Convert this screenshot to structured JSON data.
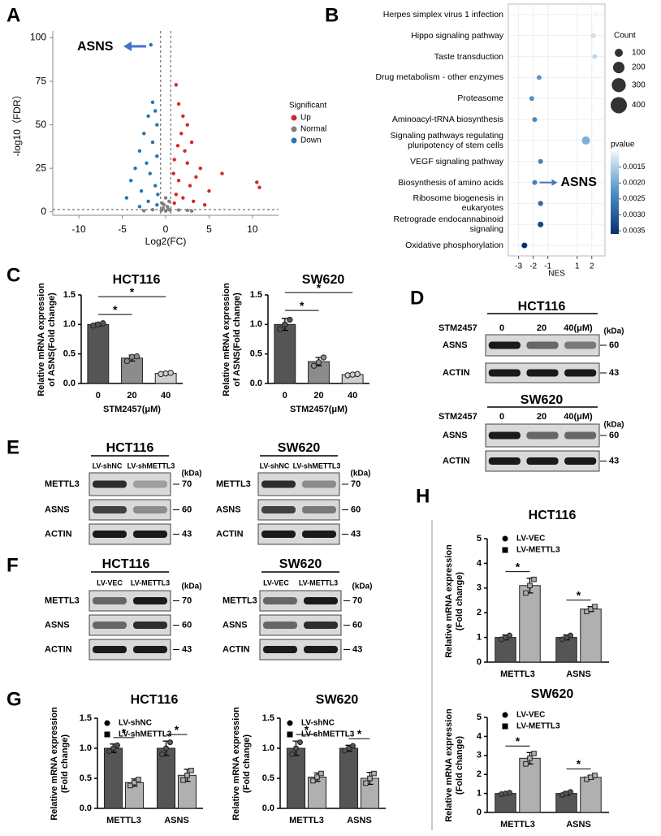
{
  "panel_labels": [
    "A",
    "B",
    "C",
    "D",
    "E",
    "F",
    "G",
    "H"
  ],
  "chart_data": [
    {
      "type": "volcano",
      "xlabel": "Log2(FC)",
      "ylabel": "-log10（FDR）",
      "xlim": [
        -13,
        13
      ],
      "ylim": [
        -2,
        104
      ],
      "xticks": [
        -10,
        -5,
        0,
        5,
        10
      ],
      "yticks": [
        0,
        25,
        50,
        75,
        100
      ],
      "thresholds": {
        "x": [
          -0.58,
          0.58
        ],
        "y": 1.3
      },
      "legend_title": "Significant",
      "annotation": "ASNS",
      "series": [
        {
          "name": "Up",
          "color": "#d62728",
          "x": [
            1.2,
            1.5,
            2.0,
            2.5,
            1.8,
            3.0,
            2.2,
            1.0,
            4.0,
            3.5,
            1.5,
            2.8,
            5.0,
            10.5,
            10.8,
            1.2,
            2.0,
            3.2,
            1.0,
            4.5,
            6.5,
            1.4,
            0.9,
            2.5
          ],
          "values": [
            73,
            62,
            55,
            50,
            45,
            40,
            35,
            30,
            25,
            20,
            18,
            15,
            12,
            17,
            14,
            10,
            8,
            6,
            5,
            4,
            22,
            38,
            22,
            28
          ]
        },
        {
          "name": "Normal",
          "color": "#7f7f7f",
          "x": [
            0,
            0.3,
            -0.3,
            0.5,
            -0.5,
            0.2,
            -0.2,
            0.4,
            -0.4,
            1.5,
            -1.5,
            2.5,
            -2.5,
            0,
            3.0
          ],
          "values": [
            0.5,
            1.5,
            2,
            1,
            0.8,
            3,
            4,
            6,
            5,
            1,
            1.2,
            0.8,
            0.6,
            8,
            0.5
          ]
        },
        {
          "name": "Down",
          "color": "#1f77b4",
          "x": [
            -1.7,
            -1.5,
            -1.2,
            -2.0,
            -1.0,
            -2.5,
            -1.5,
            -3.0,
            -1.0,
            -2.2,
            -3.5,
            -1.8,
            -4.0,
            -1.2,
            -2.8,
            -4.5,
            -0.9,
            -2.0,
            -1.0,
            -3.0
          ],
          "values": [
            96,
            63,
            58,
            55,
            50,
            45,
            40,
            35,
            32,
            28,
            25,
            22,
            18,
            15,
            12,
            8,
            10,
            6,
            4,
            3
          ]
        }
      ]
    },
    {
      "type": "dot",
      "xlabel": "NES",
      "categories": [
        "Herpes simplex virus 1 infection",
        "Hippo signaling pathway",
        "Taste transduction",
        "Drug metabolism - other enzymes",
        "Proteasome",
        "Aminoacyl-tRNA biosynthesis",
        "Signaling pathways regulating\npluripotency of stem cells",
        "VEGF signaling pathway",
        "Biosynthesis of amino acids",
        "Ribosome biogenesis in\neukaryotes",
        "Retrograde endocannabinoid\nsignaling",
        "Oxidative phosphorylation"
      ],
      "values": [
        2.3,
        2.1,
        2.2,
        -1.6,
        -2.1,
        -1.9,
        1.6,
        -1.5,
        -1.9,
        -1.5,
        -1.5,
        -2.6
      ],
      "sizes": [
        40,
        36,
        36,
        36,
        36,
        36,
        100,
        36,
        36,
        40,
        49,
        49
      ],
      "pvalues": [
        0.001,
        0.0013,
        0.0014,
        0.0022,
        0.0023,
        0.0024,
        0.0019,
        0.0025,
        0.0025,
        0.0028,
        0.0033,
        0.0036
      ],
      "xlim": [
        -3.7,
        2.9
      ],
      "xticks": [
        -3,
        -2,
        -1,
        1,
        2
      ],
      "size_legend_title": "Count",
      "size_legend": [
        100,
        200,
        300,
        400
      ],
      "color_legend_title": "pvalue",
      "clim": [
        0.001,
        0.0036
      ],
      "cticks": [
        0.0015,
        {
          "value": 0.002,
          "label": "0.0020"
        },
        0.0025,
        {
          "value": 0.003,
          "label": "0.0030"
        },
        0.0035
      ],
      "annotation": "ASNS",
      "annotation_category": "Biosynthesis of amino acids"
    },
    {
      "type": "bar",
      "title": "HCT116",
      "ylabel": "Relative mRNA expression\nof ASNS(Fold change)",
      "xlabel": "STM2457(μM)",
      "categories": [
        "0",
        "20",
        "40"
      ],
      "values": [
        1.0,
        0.43,
        0.17
      ],
      "errors": [
        0.03,
        0.05,
        0.02
      ],
      "points": [
        [
          0.98,
          1.0,
          1.02
        ],
        [
          0.38,
          0.45,
          0.46
        ],
        [
          0.16,
          0.17,
          0.18
        ]
      ],
      "colors": [
        "#555555",
        "#8c8c8c",
        "#cfcfcf"
      ],
      "ylim": [
        0,
        1.5
      ],
      "yticks": [
        {
          "value": 0,
          "label": "0.0"
        },
        0.5,
        {
          "value": 1,
          "label": "1.0"
        },
        1.5
      ],
      "significance": [
        {
          "between": [
            "0",
            "20"
          ],
          "label": "*"
        },
        {
          "between": [
            "0",
            "40"
          ],
          "label": "*"
        }
      ]
    },
    {
      "type": "bar",
      "title": "SW620",
      "ylabel": "Relative mRNA expression\nof ASNS(Fold change)",
      "xlabel": "STM2457(μM)",
      "categories": [
        "0",
        "20",
        "40"
      ],
      "values": [
        1.0,
        0.37,
        0.15
      ],
      "errors": [
        0.1,
        0.07,
        0.02
      ],
      "points": [
        [
          0.92,
          1.0,
          1.08
        ],
        [
          0.3,
          0.36,
          0.44
        ],
        [
          0.14,
          0.15,
          0.16
        ]
      ],
      "colors": [
        "#555555",
        "#8c8c8c",
        "#cfcfcf"
      ],
      "ylim": [
        0,
        1.5
      ],
      "yticks": [
        {
          "value": 0,
          "label": "0.0"
        },
        0.5,
        {
          "value": 1,
          "label": "1.0"
        },
        1.5
      ],
      "significance": [
        {
          "between": [
            "0",
            "20"
          ],
          "label": "*"
        },
        {
          "between": [
            "0",
            "40"
          ],
          "label": "*"
        }
      ]
    },
    {
      "type": "grouped_bar",
      "title": "HCT116",
      "ylabel": "Relative mRNA expression\n(Fold change)",
      "categories": [
        "METTL3",
        "ASNS"
      ],
      "series": [
        {
          "name": "LV-shNC",
          "color": "#555555",
          "values": [
            1.0,
            1.0
          ],
          "errors": [
            0.07,
            0.12
          ],
          "points": [
            [
              0.95,
              1.0,
              1.05
            ],
            [
              0.9,
              1.0,
              1.1
            ]
          ]
        },
        {
          "name": "LV-shMETTL3",
          "color": "#b0b0b0",
          "values": [
            0.43,
            0.55
          ],
          "errors": [
            0.06,
            0.1
          ],
          "points": [
            [
              0.38,
              0.43,
              0.48
            ],
            [
              0.47,
              0.55,
              0.63
            ]
          ]
        }
      ],
      "ylim": [
        0,
        1.5
      ],
      "yticks": [
        {
          "value": 0,
          "label": "0.0"
        },
        0.5,
        {
          "value": 1,
          "label": "1.0"
        },
        1.5
      ],
      "significance": [
        {
          "category": "METTL3",
          "label": "*"
        },
        {
          "category": "ASNS",
          "label": "*"
        }
      ]
    },
    {
      "type": "grouped_bar",
      "title": "SW620",
      "ylabel": "Relative mRNA expression\n(Fold change)",
      "categories": [
        "METTL3",
        "ASNS"
      ],
      "series": [
        {
          "name": "LV-shNC",
          "color": "#555555",
          "values": [
            1.0,
            1.0
          ],
          "errors": [
            0.12,
            0.05
          ],
          "points": [
            [
              0.9,
              1.0,
              1.1
            ],
            [
              0.96,
              1.0,
              1.04
            ]
          ]
        },
        {
          "name": "LV-shMETTL3",
          "color": "#b0b0b0",
          "values": [
            0.52,
            0.5
          ],
          "errors": [
            0.07,
            0.1
          ],
          "points": [
            [
              0.46,
              0.52,
              0.58
            ],
            [
              0.42,
              0.5,
              0.58
            ]
          ]
        }
      ],
      "ylim": [
        0,
        1.5
      ],
      "yticks": [
        {
          "value": 0,
          "label": "0.0"
        },
        0.5,
        {
          "value": 1,
          "label": "1.0"
        },
        1.5
      ],
      "significance": [
        {
          "category": "METTL3",
          "label": "*"
        },
        {
          "category": "ASNS",
          "label": "*"
        }
      ]
    },
    {
      "type": "grouped_bar",
      "title": "HCT116",
      "ylabel": "Relative mRNA expression\n(Fold change)",
      "categories": [
        "METTL3",
        "ASNS"
      ],
      "series": [
        {
          "name": "LV-VEC",
          "color": "#555555",
          "values": [
            1.0,
            1.0
          ],
          "errors": [
            0.1,
            0.1
          ],
          "points": [
            [
              0.92,
              1.0,
              1.08
            ],
            [
              0.92,
              1.0,
              1.08
            ]
          ]
        },
        {
          "name": "LV-METTL3",
          "color": "#b0b0b0",
          "values": [
            3.1,
            2.15
          ],
          "errors": [
            0.3,
            0.1
          ],
          "points": [
            [
              2.8,
              3.1,
              3.35
            ],
            [
              2.05,
              2.15,
              2.25
            ]
          ]
        }
      ],
      "ylim": [
        0,
        5
      ],
      "yticks": [
        0,
        1,
        2,
        3,
        4,
        5
      ],
      "significance": [
        {
          "category": "METTL3",
          "label": "*"
        },
        {
          "category": "ASNS",
          "label": "*"
        }
      ]
    },
    {
      "type": "grouped_bar",
      "title": "SW620",
      "ylabel": "Relative mRNA expression\n(Fold change)",
      "categories": [
        "METTL3",
        "ASNS"
      ],
      "series": [
        {
          "name": "LV-VEC",
          "color": "#555555",
          "values": [
            1.0,
            1.0
          ],
          "errors": [
            0.05,
            0.1
          ],
          "points": [
            [
              0.96,
              1.0,
              1.04
            ],
            [
              0.92,
              1.0,
              1.08
            ]
          ]
        },
        {
          "name": "LV-METTL3",
          "color": "#b0b0b0",
          "values": [
            2.85,
            1.85
          ],
          "errors": [
            0.3,
            0.1
          ],
          "points": [
            [
              2.55,
              2.85,
              3.1
            ],
            [
              1.75,
              1.85,
              1.95
            ]
          ]
        }
      ],
      "ylim": [
        0,
        5
      ],
      "yticks": [
        0,
        1,
        2,
        3,
        4,
        5
      ],
      "significance": [
        {
          "category": "METTL3",
          "label": "*"
        },
        {
          "category": "ASNS",
          "label": "*"
        }
      ]
    }
  ],
  "blots": [
    {
      "title": "HCT116",
      "treatment": "STM2457",
      "lanes": [
        "0",
        "20",
        "40(μM)"
      ],
      "unit": "(kDa)",
      "rows": [
        {
          "name": "ASNS",
          "kda": "60"
        },
        {
          "name": "ACTIN",
          "kda": "43"
        }
      ]
    },
    {
      "title": "SW620",
      "treatment": "STM2457",
      "lanes": [
        "0",
        "20",
        "40(μM)"
      ],
      "unit": "(kDa)",
      "rows": [
        {
          "name": "ASNS",
          "kda": "60"
        },
        {
          "name": "ACTIN",
          "kda": "43"
        }
      ]
    },
    {
      "title": "HCT116",
      "lanes": [
        "LV-shNC",
        "LV-shMETTL3"
      ],
      "unit": "(kDa)",
      "rows": [
        {
          "name": "METTL3",
          "kda": "70"
        },
        {
          "name": "ASNS",
          "kda": "60"
        },
        {
          "name": "ACTIN",
          "kda": "43"
        }
      ]
    },
    {
      "title": "SW620",
      "lanes": [
        "LV-shNC",
        "LV-shMETTL3"
      ],
      "unit": "(kDa)",
      "rows": [
        {
          "name": "METTL3",
          "kda": "70"
        },
        {
          "name": "ASNS",
          "kda": "60"
        },
        {
          "name": "ACTIN",
          "kda": "43"
        }
      ]
    },
    {
      "title": "HCT116",
      "lanes": [
        "LV-VEC",
        "LV-METTL3"
      ],
      "unit": "(kDa)",
      "rows": [
        {
          "name": "METTL3",
          "kda": "70"
        },
        {
          "name": "ASNS",
          "kda": "60"
        },
        {
          "name": "ACTIN",
          "kda": "43"
        }
      ]
    },
    {
      "title": "SW620",
      "lanes": [
        "LV-VEC",
        "LV-METTL3"
      ],
      "unit": "(kDa)",
      "rows": [
        {
          "name": "METTL3",
          "kda": "70"
        },
        {
          "name": "ASNS",
          "kda": "60"
        },
        {
          "name": "ACTIN",
          "kda": "43"
        }
      ]
    }
  ]
}
